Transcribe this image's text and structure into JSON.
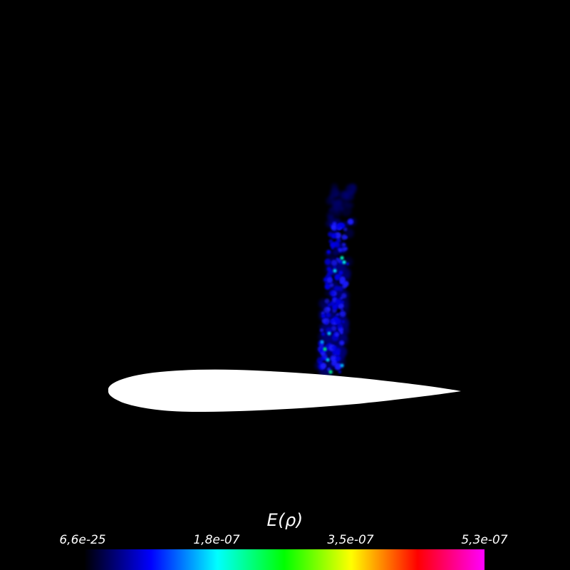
{
  "scene": {
    "background_color": "#000000",
    "airfoil_color": "#ffffff"
  },
  "legend": {
    "title": "E(ρ)",
    "ticks": [
      "6,6e-25",
      "1,8e-07",
      "3,5e-07",
      "5,3e-07"
    ],
    "colormap": [
      "#000000",
      "#0000ff",
      "#00ffff",
      "#00ff00",
      "#ffff00",
      "#ff0000",
      "#ff00ff"
    ]
  }
}
